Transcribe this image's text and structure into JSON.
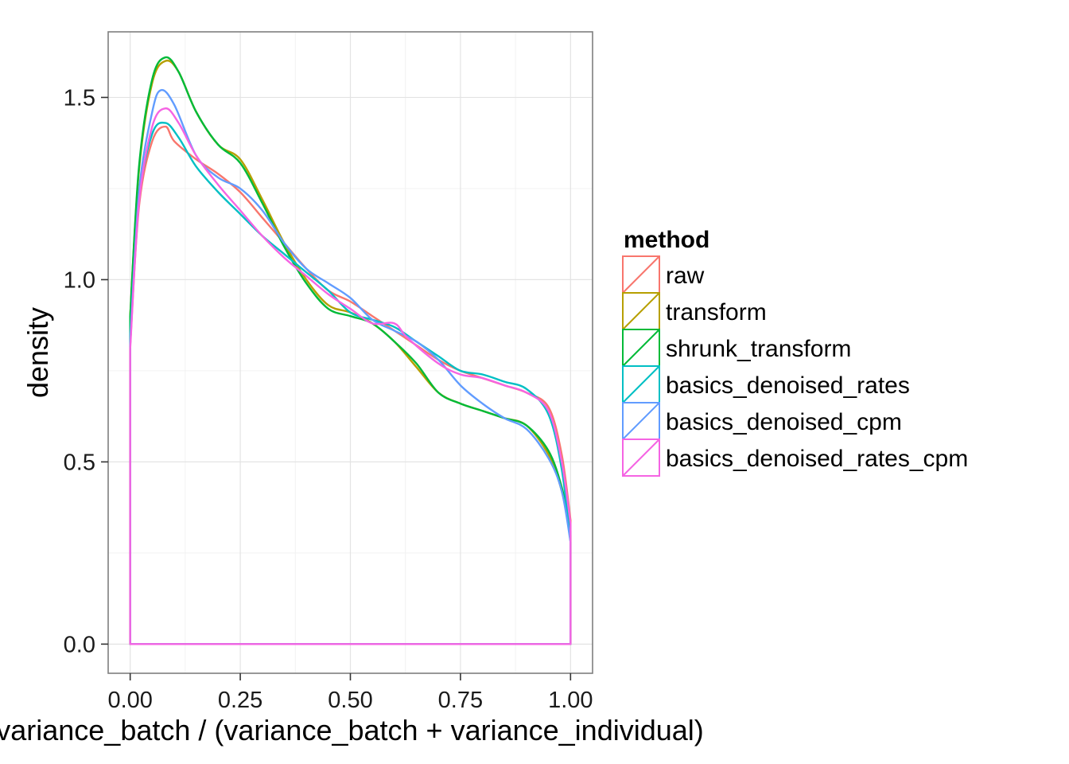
{
  "chart_data": {
    "type": "line",
    "title": "",
    "xlabel": "variance_batch / (variance_batch + variance_individual)",
    "ylabel": "density",
    "xlim": [
      -0.05,
      1.05
    ],
    "ylim": [
      -0.08,
      1.68
    ],
    "x_ticks": [
      0,
      0.25,
      0.5,
      0.75,
      1
    ],
    "x_tick_labels": [
      "0.00",
      "0.25",
      "0.50",
      "0.75",
      "1.00"
    ],
    "y_ticks": [
      0,
      0.5,
      1,
      1.5
    ],
    "y_tick_labels": [
      "0.0",
      "0.5",
      "1.0",
      "1.5"
    ],
    "grid": true,
    "legend": {
      "title": "method",
      "position": "right"
    },
    "series": [
      {
        "name": "raw",
        "color": "#F8766D",
        "points": [
          [
            0,
            0.82
          ],
          [
            0.02,
            1.2
          ],
          [
            0.05,
            1.38
          ],
          [
            0.08,
            1.42
          ],
          [
            0.1,
            1.38
          ],
          [
            0.15,
            1.33
          ],
          [
            0.2,
            1.29
          ],
          [
            0.25,
            1.24
          ],
          [
            0.3,
            1.17
          ],
          [
            0.35,
            1.1
          ],
          [
            0.4,
            1.03
          ],
          [
            0.45,
            0.97
          ],
          [
            0.5,
            0.94
          ],
          [
            0.55,
            0.9
          ],
          [
            0.6,
            0.86
          ],
          [
            0.65,
            0.82
          ],
          [
            0.7,
            0.78
          ],
          [
            0.75,
            0.75
          ],
          [
            0.8,
            0.73
          ],
          [
            0.85,
            0.71
          ],
          [
            0.9,
            0.69
          ],
          [
            0.95,
            0.65
          ],
          [
            0.98,
            0.52
          ],
          [
            1.0,
            0.34
          ]
        ]
      },
      {
        "name": "transform",
        "color": "#B79F00",
        "points": [
          [
            0,
            0.9
          ],
          [
            0.02,
            1.3
          ],
          [
            0.05,
            1.54
          ],
          [
            0.08,
            1.6
          ],
          [
            0.11,
            1.57
          ],
          [
            0.15,
            1.46
          ],
          [
            0.2,
            1.37
          ],
          [
            0.25,
            1.33
          ],
          [
            0.3,
            1.22
          ],
          [
            0.35,
            1.1
          ],
          [
            0.4,
            1.0
          ],
          [
            0.45,
            0.93
          ],
          [
            0.5,
            0.91
          ],
          [
            0.55,
            0.88
          ],
          [
            0.6,
            0.83
          ],
          [
            0.65,
            0.76
          ],
          [
            0.7,
            0.69
          ],
          [
            0.75,
            0.66
          ],
          [
            0.8,
            0.64
          ],
          [
            0.85,
            0.62
          ],
          [
            0.9,
            0.6
          ],
          [
            0.95,
            0.52
          ],
          [
            0.98,
            0.42
          ],
          [
            1.0,
            0.3
          ]
        ]
      },
      {
        "name": "shrunk_transform",
        "color": "#00BA38",
        "points": [
          [
            0,
            0.9
          ],
          [
            0.02,
            1.31
          ],
          [
            0.05,
            1.55
          ],
          [
            0.08,
            1.61
          ],
          [
            0.11,
            1.57
          ],
          [
            0.15,
            1.46
          ],
          [
            0.2,
            1.37
          ],
          [
            0.25,
            1.32
          ],
          [
            0.3,
            1.21
          ],
          [
            0.35,
            1.09
          ],
          [
            0.4,
            0.99
          ],
          [
            0.45,
            0.92
          ],
          [
            0.5,
            0.9
          ],
          [
            0.55,
            0.88
          ],
          [
            0.6,
            0.83
          ],
          [
            0.65,
            0.77
          ],
          [
            0.7,
            0.69
          ],
          [
            0.75,
            0.66
          ],
          [
            0.8,
            0.64
          ],
          [
            0.85,
            0.62
          ],
          [
            0.9,
            0.6
          ],
          [
            0.95,
            0.53
          ],
          [
            0.98,
            0.43
          ],
          [
            1.0,
            0.31
          ]
        ]
      },
      {
        "name": "basics_denoised_rates",
        "color": "#00BFC4",
        "points": [
          [
            0,
            0.85
          ],
          [
            0.02,
            1.22
          ],
          [
            0.05,
            1.4
          ],
          [
            0.08,
            1.43
          ],
          [
            0.11,
            1.39
          ],
          [
            0.15,
            1.31
          ],
          [
            0.2,
            1.24
          ],
          [
            0.25,
            1.18
          ],
          [
            0.3,
            1.12
          ],
          [
            0.35,
            1.07
          ],
          [
            0.4,
            1.02
          ],
          [
            0.45,
            0.97
          ],
          [
            0.5,
            0.91
          ],
          [
            0.55,
            0.89
          ],
          [
            0.6,
            0.87
          ],
          [
            0.65,
            0.83
          ],
          [
            0.7,
            0.79
          ],
          [
            0.75,
            0.75
          ],
          [
            0.8,
            0.74
          ],
          [
            0.85,
            0.72
          ],
          [
            0.9,
            0.7
          ],
          [
            0.95,
            0.63
          ],
          [
            0.98,
            0.48
          ],
          [
            1.0,
            0.28
          ]
        ]
      },
      {
        "name": "basics_denoised_cpm",
        "color": "#619CFF",
        "points": [
          [
            0,
            0.82
          ],
          [
            0.02,
            1.24
          ],
          [
            0.05,
            1.46
          ],
          [
            0.07,
            1.52
          ],
          [
            0.1,
            1.48
          ],
          [
            0.15,
            1.34
          ],
          [
            0.2,
            1.28
          ],
          [
            0.25,
            1.25
          ],
          [
            0.3,
            1.19
          ],
          [
            0.35,
            1.1
          ],
          [
            0.4,
            1.03
          ],
          [
            0.45,
            0.99
          ],
          [
            0.5,
            0.95
          ],
          [
            0.55,
            0.89
          ],
          [
            0.6,
            0.86
          ],
          [
            0.65,
            0.83
          ],
          [
            0.7,
            0.78
          ],
          [
            0.75,
            0.71
          ],
          [
            0.8,
            0.66
          ],
          [
            0.85,
            0.62
          ],
          [
            0.9,
            0.59
          ],
          [
            0.95,
            0.51
          ],
          [
            0.98,
            0.42
          ],
          [
            1.0,
            0.28
          ]
        ]
      },
      {
        "name": "basics_denoised_rates_cpm",
        "color": "#F564E3",
        "points": [
          [
            0,
            0.81
          ],
          [
            0.02,
            1.21
          ],
          [
            0.05,
            1.42
          ],
          [
            0.08,
            1.47
          ],
          [
            0.11,
            1.43
          ],
          [
            0.15,
            1.34
          ],
          [
            0.2,
            1.26
          ],
          [
            0.25,
            1.19
          ],
          [
            0.3,
            1.12
          ],
          [
            0.35,
            1.06
          ],
          [
            0.4,
            1.01
          ],
          [
            0.45,
            0.96
          ],
          [
            0.5,
            0.92
          ],
          [
            0.55,
            0.88
          ],
          [
            0.6,
            0.88
          ],
          [
            0.63,
            0.84
          ],
          [
            0.7,
            0.77
          ],
          [
            0.75,
            0.74
          ],
          [
            0.8,
            0.73
          ],
          [
            0.85,
            0.71
          ],
          [
            0.9,
            0.69
          ],
          [
            0.95,
            0.64
          ],
          [
            0.98,
            0.5
          ],
          [
            1.0,
            0.33
          ]
        ]
      }
    ]
  }
}
